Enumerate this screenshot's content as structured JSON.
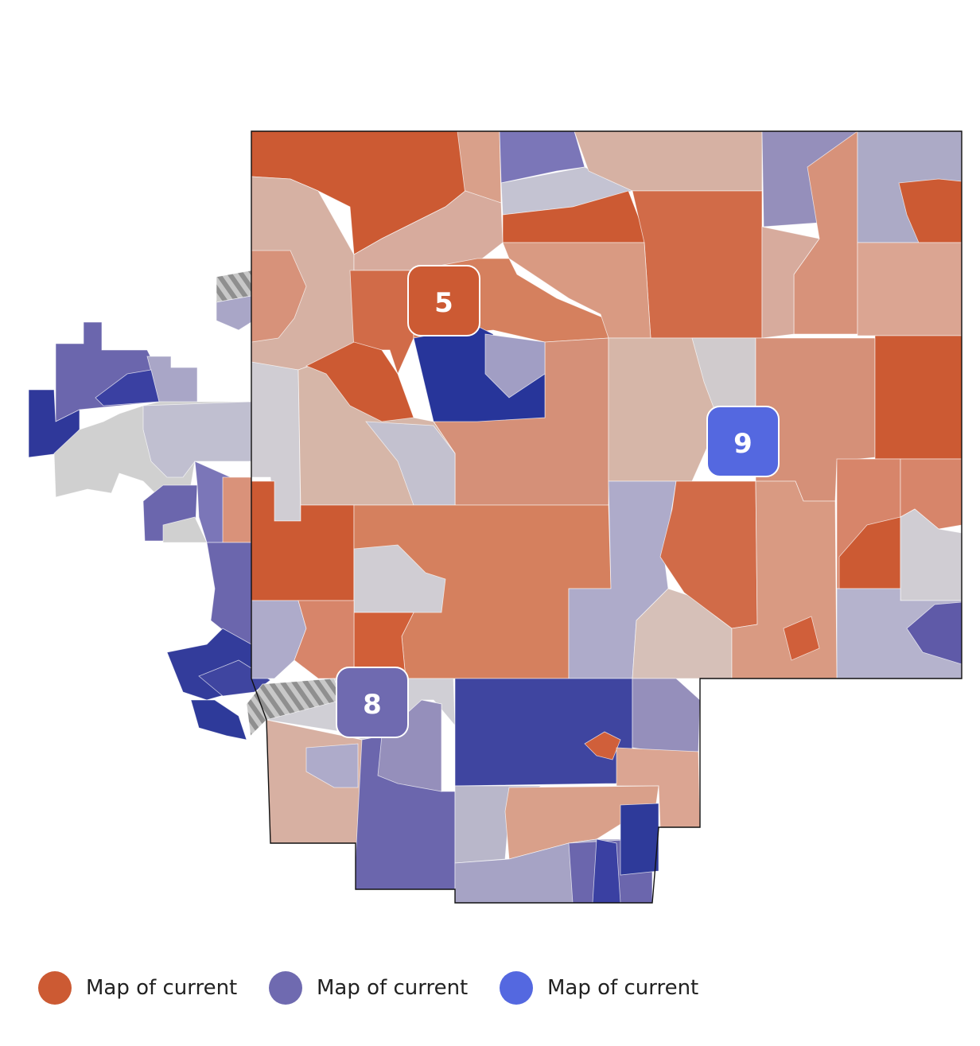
{
  "markers": [
    {
      "label": "5",
      "color": "#cc5a33"
    },
    {
      "label": "9",
      "color": "#5468e0"
    },
    {
      "label": "8",
      "color": "#6f6ab0"
    }
  ],
  "legend": [
    {
      "label": "Map of current",
      "color": "#cc5a33"
    },
    {
      "label": "Map of current",
      "color": "#6f6ab0"
    },
    {
      "label": "Map of current",
      "color": "#5468e0"
    }
  ]
}
